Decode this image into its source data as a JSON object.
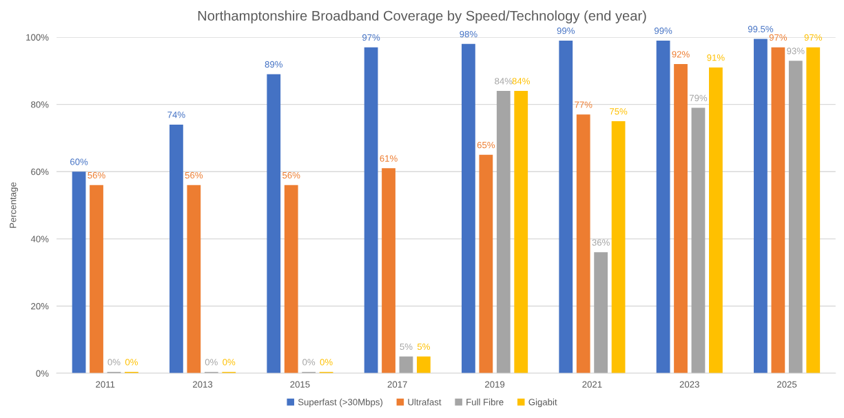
{
  "chart_data": {
    "type": "bar",
    "title": "Northamptonshire Broadband Coverage by Speed/Technology (end year)",
    "ylabel": "Percentage",
    "categories": [
      "2011",
      "2013",
      "2015",
      "2017",
      "2019",
      "2021",
      "2023",
      "2025"
    ],
    "series": [
      {
        "name": "Superfast (>30Mbps)",
        "color": "#4472c4",
        "values": [
          60,
          74,
          89,
          97,
          98,
          99,
          99,
          99.5
        ],
        "value_labels": [
          "60%",
          "74%",
          "89%",
          "97%",
          "98%",
          "99%",
          "99%",
          "99.5%"
        ]
      },
      {
        "name": "Ultrafast",
        "color": "#ed7d31",
        "values": [
          56,
          56,
          56,
          61,
          65,
          77,
          92,
          97
        ],
        "value_labels": [
          "56%",
          "56%",
          "56%",
          "61%",
          "65%",
          "77%",
          "92%",
          "97%"
        ]
      },
      {
        "name": "Full Fibre",
        "color": "#a5a5a5",
        "values": [
          0.4,
          0.4,
          0.4,
          5,
          84,
          36,
          79,
          93
        ],
        "value_labels": [
          "0%",
          "0%",
          "0%",
          "5%",
          "84%",
          "36%",
          "79%",
          "93%"
        ]
      },
      {
        "name": "Gigabit",
        "color": "#ffc000",
        "values": [
          0.4,
          0.4,
          0.4,
          5,
          84,
          75,
          91,
          97
        ],
        "value_labels": [
          "0%",
          "0%",
          "0%",
          "5%",
          "84%",
          "75%",
          "91%",
          "97%"
        ]
      }
    ],
    "ylim": [
      0,
      100
    ],
    "yticks": [
      {
        "value": 0,
        "label": "0%"
      },
      {
        "value": 20,
        "label": "20%"
      },
      {
        "value": 40,
        "label": "40%"
      },
      {
        "value": 60,
        "label": "60%"
      },
      {
        "value": 80,
        "label": "80%"
      },
      {
        "value": 100,
        "label": "100%"
      }
    ],
    "grid": "y",
    "legend": "bottom"
  }
}
